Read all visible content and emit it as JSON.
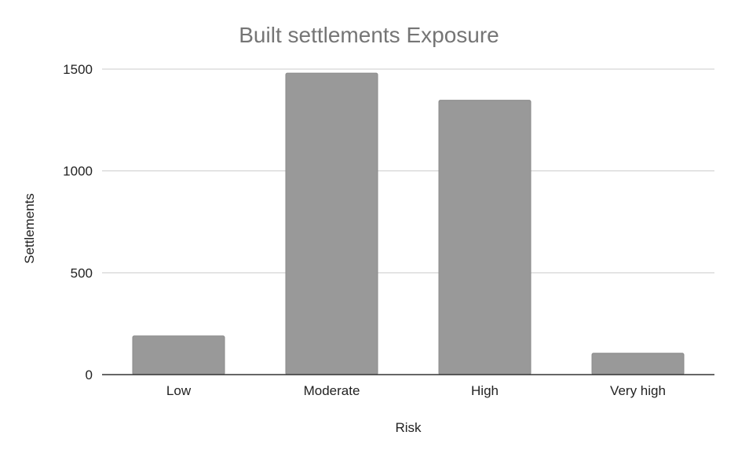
{
  "chart_data": {
    "type": "bar",
    "title": "Built settlements Exposure",
    "xlabel": "Risk",
    "ylabel": "Settlements",
    "categories": [
      "Low",
      "Moderate",
      "High",
      "Very high"
    ],
    "values": [
      190,
      1480,
      1347,
      105
    ],
    "ylim": [
      0,
      1500
    ],
    "yticks": [
      0,
      500,
      1000,
      1500
    ],
    "grid": true,
    "legend": "none",
    "bar_color": "#999999",
    "bar_stroke": "#8a8a8a"
  }
}
